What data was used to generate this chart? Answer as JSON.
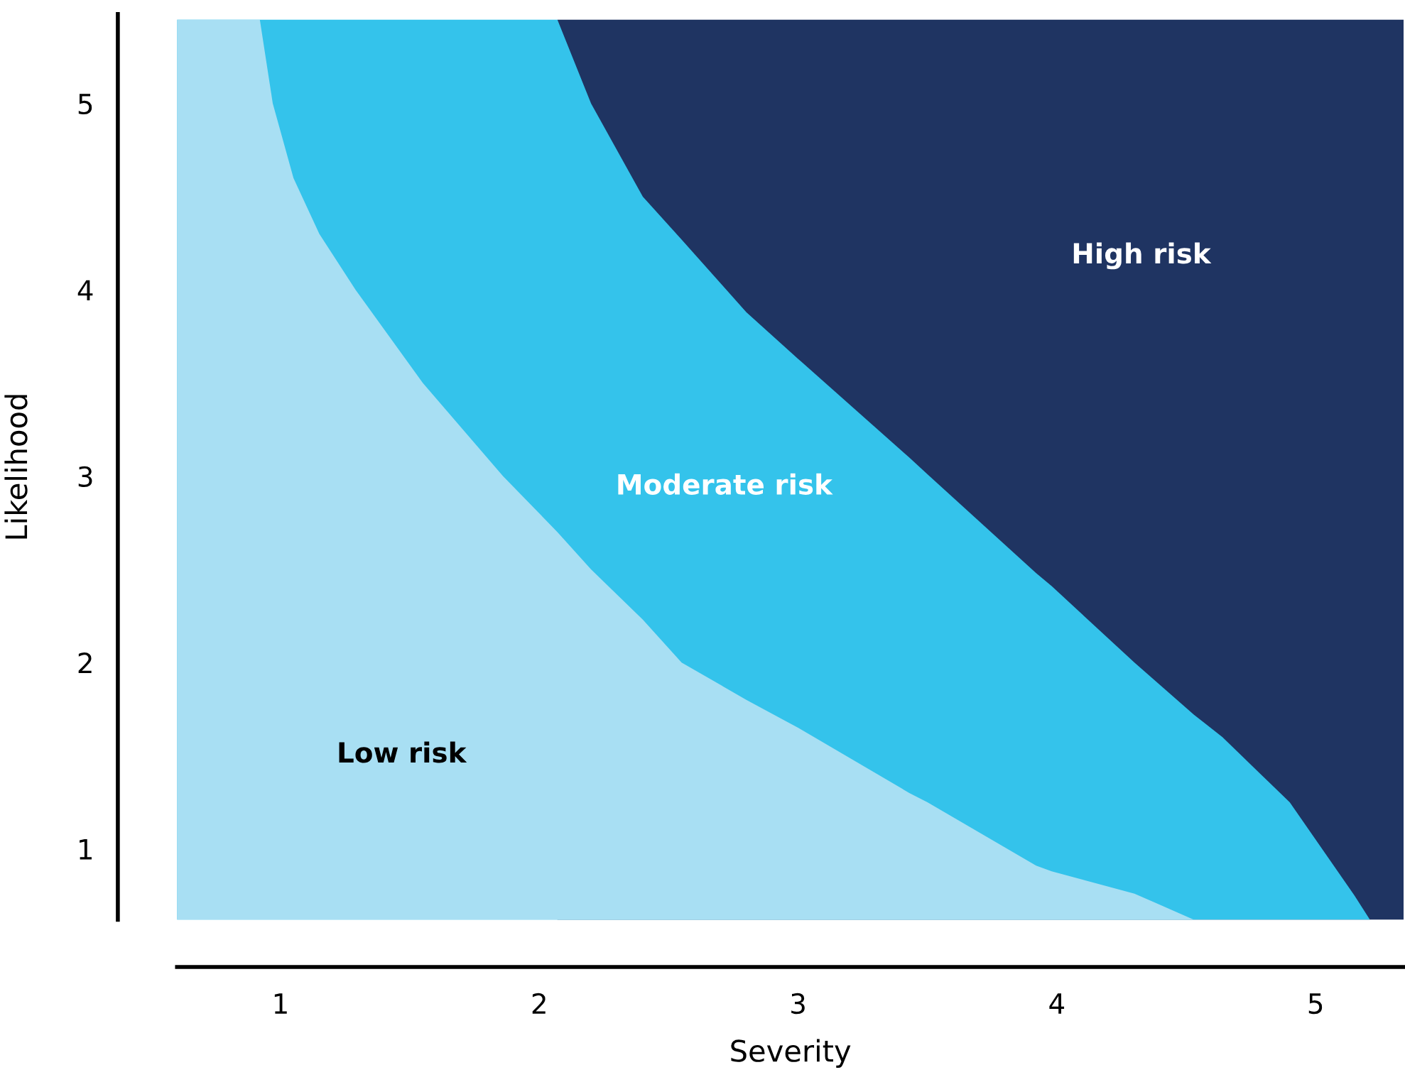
{
  "chart_data": {
    "type": "area",
    "xlabel": "Severity",
    "ylabel": "Likelihood",
    "xlim": [
      0.6,
      5.34
    ],
    "ylim": [
      0.62,
      5.48
    ],
    "xticks": [
      1,
      2,
      3,
      4,
      5
    ],
    "yticks": [
      1,
      2,
      3,
      4,
      5
    ],
    "grid": false,
    "legend": false,
    "series": [
      {
        "name": "High risk",
        "color": "#1f3462",
        "x": [
          2.07,
          5.34
        ],
        "values": [
          5.45,
          5.45
        ]
      },
      {
        "name": "Moderate risk",
        "color": "#34c3eb",
        "x": [
          0.6,
          2.07,
          2.2,
          2.4,
          2.55,
          2.8,
          3.0,
          3.43,
          3.5,
          3.92,
          3.98,
          4.3,
          4.53,
          4.64,
          4.9,
          5.05,
          5.15,
          5.21
        ],
        "values": [
          5.45,
          5.45,
          5.0,
          4.5,
          4.27,
          3.88,
          3.63,
          3.1,
          3.01,
          2.48,
          2.41,
          2.0,
          1.72,
          1.6,
          1.25,
          0.95,
          0.75,
          0.62
        ]
      },
      {
        "name": "Low risk",
        "color": "#a8dff3",
        "x": [
          0.6,
          0.92,
          0.97,
          1.05,
          1.15,
          1.29,
          1.55,
          1.86,
          2.07,
          2.2,
          2.4,
          2.55,
          2.8,
          3.0,
          3.43,
          3.5,
          3.92,
          3.98,
          4.3,
          4.53
        ],
        "values": [
          5.45,
          5.45,
          5.0,
          4.6,
          4.3,
          4.0,
          3.5,
          3.0,
          2.7,
          2.5,
          2.23,
          2.0,
          1.8,
          1.65,
          1.3,
          1.25,
          0.91,
          0.88,
          0.76,
          0.62
        ]
      }
    ]
  }
}
